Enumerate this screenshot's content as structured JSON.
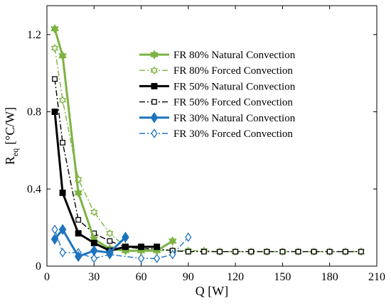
{
  "chart_data": {
    "type": "line",
    "title": "",
    "xlabel": "Q [W]",
    "ylabel": "R",
    "ylabel_subscript": "eq",
    "ylabel_unit": "[°C/W]",
    "xlim": [
      0,
      210
    ],
    "ylim": [
      0,
      1.35
    ],
    "xticks": [
      0,
      30,
      60,
      90,
      120,
      150,
      180,
      210
    ],
    "yticks": [
      0,
      0.4,
      0.8,
      1.2
    ],
    "xtick_labels": [
      "0",
      "30",
      "60",
      "90",
      "120",
      "150",
      "180",
      "210"
    ],
    "ytick_labels": [
      "0",
      "0.4",
      "0.8",
      "1.2"
    ],
    "grid": false,
    "legend_position": "top-right",
    "series": [
      {
        "name": "FR 80% Natural Convection",
        "color": "#7cb342",
        "line_style": "solid",
        "marker": "hexagram",
        "filled": true,
        "x": [
          5,
          10,
          20,
          30,
          40,
          50,
          60,
          70,
          80
        ],
        "y": [
          1.23,
          1.09,
          0.38,
          0.14,
          0.09,
          0.08,
          0.08,
          0.08,
          0.13
        ]
      },
      {
        "name": "FR 80% Forced Convection",
        "color": "#7cb342",
        "line_style": "dashdot",
        "marker": "hexagram",
        "filled": false,
        "x": [
          5,
          10,
          20,
          30,
          40,
          50,
          60,
          70,
          80,
          90,
          100,
          110,
          120,
          130,
          140,
          150,
          160,
          170,
          180,
          190,
          200
        ],
        "y": [
          1.13,
          0.86,
          0.45,
          0.28,
          0.17,
          0.1,
          0.09,
          0.08,
          0.08,
          0.08,
          0.08,
          0.075,
          0.075,
          0.075,
          0.075,
          0.075,
          0.075,
          0.075,
          0.075,
          0.075,
          0.075
        ]
      },
      {
        "name": "FR 50% Natural Convection",
        "color": "#000000",
        "line_style": "solid",
        "marker": "square",
        "filled": true,
        "x": [
          5,
          10,
          20,
          30,
          40,
          50,
          60,
          70
        ],
        "y": [
          0.8,
          0.38,
          0.17,
          0.12,
          0.08,
          0.1,
          0.1,
          0.1
        ]
      },
      {
        "name": "FR 50% Forced Convection",
        "color": "#000000",
        "line_style": "dashdot",
        "marker": "square",
        "filled": false,
        "x": [
          5,
          10,
          20,
          30,
          40,
          50,
          60,
          70,
          80,
          90,
          100,
          110,
          120,
          130,
          140,
          150,
          160,
          170,
          180,
          190,
          200
        ],
        "y": [
          0.97,
          0.64,
          0.24,
          0.17,
          0.13,
          0.1,
          0.09,
          0.09,
          0.08,
          0.075,
          0.075,
          0.075,
          0.075,
          0.075,
          0.075,
          0.075,
          0.075,
          0.075,
          0.075,
          0.075,
          0.075
        ]
      },
      {
        "name": "FR 30% Natural Convection",
        "color": "#1e73be",
        "line_style": "solid",
        "marker": "diamond",
        "filled": true,
        "x": [
          5,
          10,
          20,
          30,
          40,
          50
        ],
        "y": [
          0.14,
          0.19,
          0.05,
          0.08,
          0.07,
          0.15
        ]
      },
      {
        "name": "FR 30% Forced Convection",
        "color": "#1e73be",
        "line_style": "dashdot",
        "marker": "diamond",
        "filled": false,
        "x": [
          5,
          10,
          20,
          30,
          40,
          60,
          70,
          80,
          90
        ],
        "y": [
          0.19,
          0.07,
          0.07,
          0.04,
          0.06,
          0.04,
          0.04,
          0.06,
          0.15
        ]
      }
    ]
  }
}
